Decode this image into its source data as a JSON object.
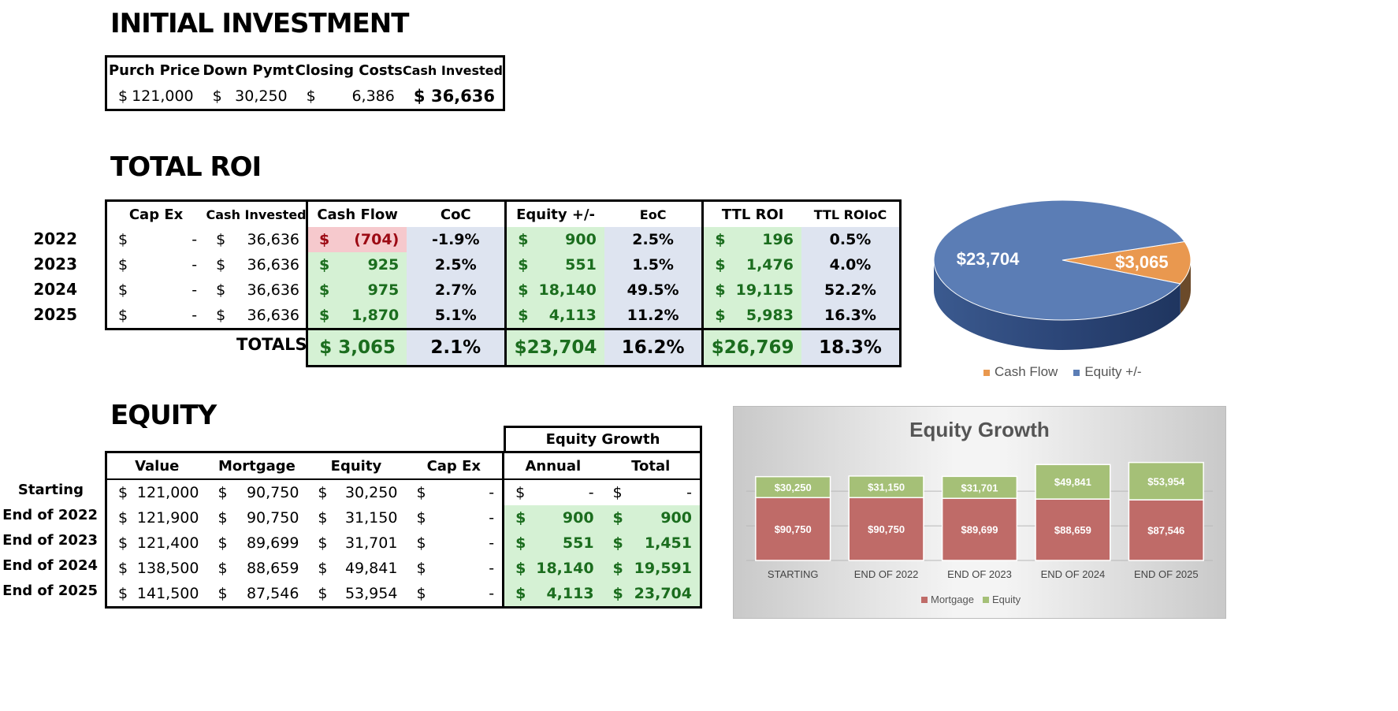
{
  "initial": {
    "title": "INITIAL INVESTMENT",
    "headers": [
      "Purch Price",
      "Down Pymt",
      "Closing Costs",
      "Cash Invested"
    ],
    "values": [
      "121,000",
      "30,250",
      "6,386",
      "36,636"
    ],
    "currency": "$"
  },
  "roi": {
    "title": "TOTAL ROI",
    "headers": [
      "Cap Ex",
      "Cash Invested",
      "Cash Flow",
      "CoC",
      "Equity +/-",
      "EoC",
      "TTL ROI",
      "TTL ROIoC"
    ],
    "rows": [
      {
        "year": "2022",
        "capex": "-",
        "cash_invested": "36,636",
        "cash_flow": "(704)",
        "coc": "-1.9%",
        "equity": "900",
        "eoc": "2.5%",
        "ttl_roi": "196",
        "ttl_roioc": "0.5%"
      },
      {
        "year": "2023",
        "capex": "-",
        "cash_invested": "36,636",
        "cash_flow": "925",
        "coc": "2.5%",
        "equity": "551",
        "eoc": "1.5%",
        "ttl_roi": "1,476",
        "ttl_roioc": "4.0%"
      },
      {
        "year": "2024",
        "capex": "-",
        "cash_invested": "36,636",
        "cash_flow": "975",
        "coc": "2.7%",
        "equity": "18,140",
        "eoc": "49.5%",
        "ttl_roi": "19,115",
        "ttl_roioc": "52.2%"
      },
      {
        "year": "2025",
        "capex": "-",
        "cash_invested": "36,636",
        "cash_flow": "1,870",
        "coc": "5.1%",
        "equity": "4,113",
        "eoc": "11.2%",
        "ttl_roi": "5,983",
        "ttl_roioc": "16.3%"
      }
    ],
    "totals": {
      "label": "TOTALS",
      "cash_flow": "$ 3,065",
      "coc": "2.1%",
      "equity": "$23,704",
      "eoc": "16.2%",
      "ttl_roi": "$26,769",
      "ttl_roioc": "18.3%"
    }
  },
  "equity": {
    "title": "EQUITY",
    "group_header": "Equity Growth",
    "headers": [
      "Value",
      "Mortgage",
      "Equity",
      "Cap Ex",
      "Annual",
      "Total"
    ],
    "rows": [
      {
        "label": "Starting",
        "value": "121,000",
        "mortgage": "90,750",
        "equity": "30,250",
        "capex": "-",
        "annual": "-",
        "total": "-"
      },
      {
        "label": "End of 2022",
        "value": "121,900",
        "mortgage": "90,750",
        "equity": "31,150",
        "capex": "-",
        "annual": "900",
        "total": "900"
      },
      {
        "label": "End of 2023",
        "value": "121,400",
        "mortgage": "89,699",
        "equity": "31,701",
        "capex": "-",
        "annual": "551",
        "total": "1,451"
      },
      {
        "label": "End of 2024",
        "value": "138,500",
        "mortgage": "88,659",
        "equity": "49,841",
        "capex": "-",
        "annual": "18,140",
        "total": "19,591"
      },
      {
        "label": "End of 2025",
        "value": "141,500",
        "mortgage": "87,546",
        "equity": "53,954",
        "capex": "-",
        "annual": "4,113",
        "total": "23,704"
      }
    ]
  },
  "chart_data": [
    {
      "type": "pie",
      "title": "",
      "labels": [
        "Cash Flow",
        "Equity +/-"
      ],
      "values": [
        3065,
        23704
      ],
      "data_labels": [
        "$3,065",
        "$23,704"
      ],
      "colors": [
        "#e9984f",
        "#5b7db5"
      ],
      "legend": "bottom"
    },
    {
      "type": "bar",
      "stacked": true,
      "title": "Equity Growth",
      "categories": [
        "STARTING",
        "END OF 2022",
        "END OF 2023",
        "END OF 2024",
        "END OF 2025"
      ],
      "series": [
        {
          "name": "Mortgage",
          "values": [
            90750,
            90750,
            89699,
            88659,
            87546
          ],
          "labels": [
            "$90,750",
            "$90,750",
            "$89,699",
            "$88,659",
            "$87,546"
          ],
          "color": "#bf6b68"
        },
        {
          "name": "Equity",
          "values": [
            30250,
            31150,
            31701,
            49841,
            53954
          ],
          "labels": [
            "$30,250",
            "$31,150",
            "$31,701",
            "$49,841",
            "$53,954"
          ],
          "color": "#a5c077"
        }
      ],
      "legend": "bottom"
    }
  ]
}
